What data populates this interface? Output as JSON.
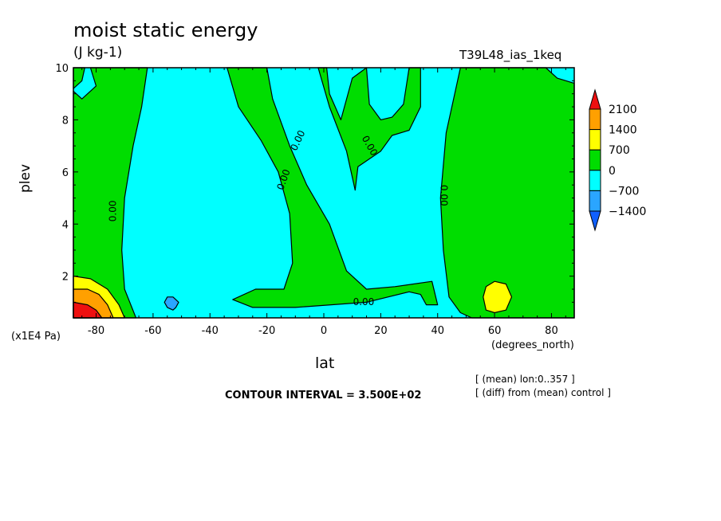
{
  "header": {
    "title": "moist static energy",
    "units": "(J kg-1)",
    "run_id": "T39L48_ias_1keq"
  },
  "footer": {
    "contour_interval": "CONTOUR INTERVAL = 3.500E+02",
    "note_lon": "[ (mean) lon:0..357 ]",
    "note_diff": "[ (diff) from (mean) control ]"
  },
  "colors": {
    "fill_pos_0": "#00dd00",
    "fill_neg_0": "#00ffff",
    "fill_neg_1": "#2aa5ff",
    "fill_pos_1": "#ffff00",
    "fill_pos_2": "#ffa000",
    "fill_pos_3": "#ee1010",
    "legend_neg_2": "#1060ff"
  },
  "chart_data": {
    "type": "heatmap",
    "title": "moist static energy",
    "subtitle": "(J kg-1)",
    "xlabel": "lat",
    "xunit": "(degrees_north)",
    "ylabel": "plev",
    "yunit": "(x1E4 Pa)",
    "xlim": [
      -88,
      88
    ],
    "ylim": [
      10,
      0.4
    ],
    "xticks": [
      -80,
      -60,
      -40,
      -20,
      0,
      20,
      40,
      60,
      80
    ],
    "xtick_labels": [
      "-80",
      "-60",
      "-40",
      "-20",
      "0",
      "20",
      "40",
      "60",
      "80"
    ],
    "yticks": [
      2,
      4,
      6,
      8,
      10
    ],
    "ytick_labels": [
      "2",
      "4",
      "6",
      "8",
      "10"
    ],
    "contour_label": "0.00",
    "contour_label_positions": [
      {
        "lat": -74,
        "plev": 4.5,
        "angle": -90
      },
      {
        "lat": -14,
        "plev": 5.7,
        "angle": -70
      },
      {
        "lat": -9,
        "plev": 7.2,
        "angle": -65
      },
      {
        "lat": 16,
        "plev": 7.0,
        "angle": 60
      },
      {
        "lat": 42,
        "plev": 5.1,
        "angle": 90
      },
      {
        "lat": 14,
        "plev": 1.0,
        "angle": 0
      }
    ],
    "legend": {
      "levels": [
        2100,
        1400,
        700,
        0,
        -700,
        -1400
      ],
      "labels": [
        "2100",
        "1400",
        "700",
        "0",
        "−700",
        "−1400"
      ],
      "placement": "right"
    },
    "regions": [
      {
        "level": "0..700",
        "color_key": "fill_pos_0",
        "polygon": [
          [
            -88,
            10
          ],
          [
            -88,
            9.2
          ],
          [
            -85,
            9.5
          ],
          [
            -84,
            10
          ]
        ]
      },
      {
        "level": "0..700",
        "color_key": "fill_pos_0",
        "polygon": [
          [
            -88,
            0.4
          ],
          [
            -66,
            0.4
          ],
          [
            -70,
            1.5
          ],
          [
            -71,
            3
          ],
          [
            -70,
            5
          ],
          [
            -67,
            7
          ],
          [
            -64,
            8.5
          ],
          [
            -62,
            10
          ],
          [
            -82,
            10
          ],
          [
            -80,
            9.3
          ],
          [
            -85,
            8.8
          ],
          [
            -88,
            9.1
          ]
        ]
      },
      {
        "level": "0..700",
        "color_key": "fill_pos_0",
        "polygon": [
          [
            -32,
            1.1
          ],
          [
            -25,
            0.8
          ],
          [
            -10,
            0.8
          ],
          [
            15,
            1.0
          ],
          [
            30,
            1.4
          ],
          [
            34,
            1.3
          ],
          [
            36,
            0.9
          ],
          [
            40,
            0.9
          ],
          [
            38,
            1.8
          ],
          [
            25,
            1.6
          ],
          [
            15,
            1.5
          ],
          [
            8,
            2.2
          ],
          [
            2,
            4
          ],
          [
            -6,
            5.5
          ],
          [
            -12,
            7
          ],
          [
            -18,
            8.8
          ],
          [
            -20,
            10
          ],
          [
            -34,
            10
          ],
          [
            -30,
            8.5
          ],
          [
            -22,
            7.2
          ],
          [
            -16,
            6.0
          ],
          [
            -12,
            4.4
          ],
          [
            -11,
            2.5
          ],
          [
            -14,
            1.5
          ],
          [
            -24,
            1.5
          ]
        ]
      },
      {
        "level": "0..700",
        "color_key": "fill_pos_0",
        "polygon": [
          [
            -2,
            10
          ],
          [
            2,
            8.5
          ],
          [
            8,
            6.8
          ],
          [
            11,
            5.3
          ],
          [
            12,
            6.2
          ],
          [
            20,
            6.8
          ],
          [
            24,
            7.4
          ],
          [
            30,
            7.6
          ],
          [
            34,
            8.5
          ],
          [
            34,
            10
          ],
          [
            30,
            10
          ],
          [
            28,
            8.6
          ],
          [
            24,
            8.1
          ],
          [
            20,
            8.0
          ],
          [
            16,
            8.6
          ],
          [
            15,
            10
          ],
          [
            10,
            9.6
          ],
          [
            6,
            8.0
          ],
          [
            2,
            9.0
          ],
          [
            1,
            10
          ]
        ]
      },
      {
        "level": "0..700",
        "color_key": "fill_pos_0",
        "polygon": [
          [
            48,
            10
          ],
          [
            43,
            7.5
          ],
          [
            41,
            5
          ],
          [
            42,
            3
          ],
          [
            44,
            1.2
          ],
          [
            48,
            0.6
          ],
          [
            52,
            0.4
          ],
          [
            88,
            0.4
          ],
          [
            88,
            9.4
          ],
          [
            82,
            9.6
          ],
          [
            78,
            10
          ]
        ]
      },
      {
        "level": "700..1400",
        "color_key": "fill_pos_1",
        "polygon": [
          [
            -88,
            0.4
          ],
          [
            -70,
            0.4
          ],
          [
            -72,
            0.9
          ],
          [
            -76,
            1.5
          ],
          [
            -82,
            1.9
          ],
          [
            -88,
            2.0
          ]
        ]
      },
      {
        "level": "700..1400",
        "color_key": "fill_pos_1",
        "polygon": [
          [
            56,
            1.2
          ],
          [
            57,
            0.7
          ],
          [
            60,
            0.6
          ],
          [
            64,
            0.7
          ],
          [
            66,
            1.2
          ],
          [
            64,
            1.7
          ],
          [
            60,
            1.8
          ],
          [
            57,
            1.6
          ]
        ]
      },
      {
        "level": "1400..2100",
        "color_key": "fill_pos_2",
        "polygon": [
          [
            -88,
            0.4
          ],
          [
            -74,
            0.4
          ],
          [
            -76,
            0.9
          ],
          [
            -79,
            1.3
          ],
          [
            -83,
            1.5
          ],
          [
            -88,
            1.5
          ]
        ]
      },
      {
        "level": ">2100",
        "color_key": "fill_pos_3",
        "polygon": [
          [
            -88,
            0.4
          ],
          [
            -78,
            0.4
          ],
          [
            -80,
            0.7
          ],
          [
            -83,
            0.9
          ],
          [
            -88,
            1.0
          ]
        ]
      },
      {
        "level": "-1400..-700",
        "color_key": "fill_neg_1",
        "polygon": [
          [
            -56,
            1.0
          ],
          [
            -55,
            0.8
          ],
          [
            -53,
            0.7
          ],
          [
            -52,
            0.8
          ],
          [
            -51,
            1.0
          ],
          [
            -53,
            1.2
          ],
          [
            -55,
            1.2
          ]
        ]
      }
    ]
  }
}
